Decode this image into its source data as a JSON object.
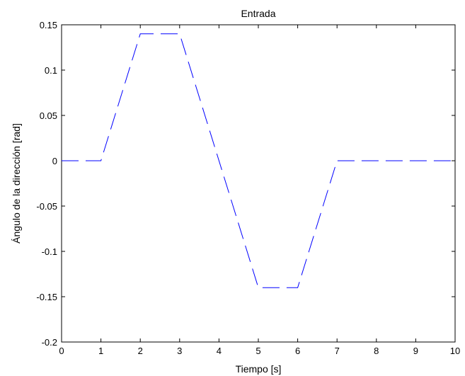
{
  "chart_data": {
    "type": "line",
    "title": "Entrada",
    "xlabel": "Tiempo [s]",
    "ylabel": "Ángulo de la dirección [rad]",
    "xlim": [
      0,
      10
    ],
    "ylim": [
      -0.2,
      0.15
    ],
    "xticks": [
      0,
      1,
      2,
      3,
      4,
      5,
      6,
      7,
      8,
      9,
      10
    ],
    "xtick_labels": [
      "0",
      "1",
      "2",
      "3",
      "4",
      "5",
      "6",
      "7",
      "8",
      "9",
      "10"
    ],
    "yticks": [
      -0.2,
      -0.15,
      -0.1,
      -0.05,
      0,
      0.05,
      0.1,
      0.15
    ],
    "ytick_labels": [
      "-0.2",
      "-0.15",
      "-0.1",
      "-0.05",
      "0",
      "0.05",
      "0.1",
      "0.15"
    ],
    "grid": false,
    "series": [
      {
        "color": "#0000ff",
        "line_style": "dashed",
        "x": [
          0,
          1,
          2,
          3,
          5,
          6,
          7,
          10
        ],
        "y": [
          0,
          0,
          0.14,
          0.14,
          -0.14,
          -0.14,
          0,
          0
        ]
      }
    ]
  }
}
